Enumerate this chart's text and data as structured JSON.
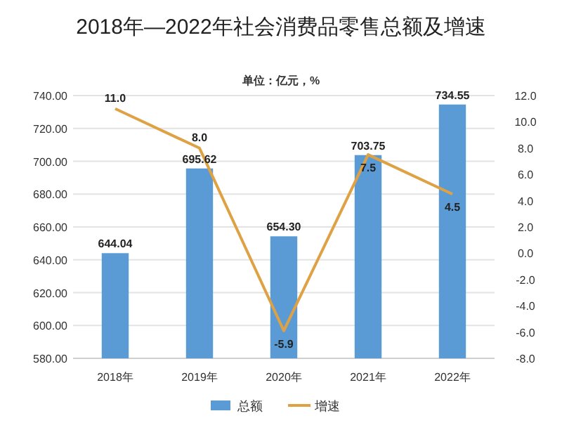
{
  "chart_data": {
    "type": "bar",
    "title": "2018年—2022年社会消费品零售总额及增速",
    "subtitle": "单位：亿元，%",
    "categories": [
      "2018年",
      "2019年",
      "2020年",
      "2021年",
      "2022年"
    ],
    "series": [
      {
        "name": "总额",
        "color": "#5b9bd5",
        "values": [
          644.04,
          695.62,
          654.3,
          703.75,
          734.55
        ],
        "value_labels": [
          "644.04",
          "695.62",
          "654.30",
          "703.75",
          "734.55"
        ]
      },
      {
        "name": "增速",
        "type": "line",
        "axis": "y2",
        "color": "#dea244",
        "values": [
          11.0,
          8.0,
          -5.9,
          7.5,
          4.5
        ],
        "value_labels": [
          "11.0",
          "8.0",
          "-5.9",
          "7.5",
          "4.5"
        ]
      }
    ],
    "ylim": [
      580,
      740
    ],
    "yticks": [
      {
        "value": 580,
        "label": "580.00"
      },
      {
        "value": 600,
        "label": "600.00"
      },
      {
        "value": 620,
        "label": "620.00"
      },
      {
        "value": 640,
        "label": "640.00"
      },
      {
        "value": 660,
        "label": "660.00"
      },
      {
        "value": 680,
        "label": "680.00"
      },
      {
        "value": 700,
        "label": "700.00"
      },
      {
        "value": 720,
        "label": "720.00"
      },
      {
        "value": 740,
        "label": "740.00"
      }
    ],
    "y2lim": [
      -8,
      12
    ],
    "y2ticks": [
      {
        "value": -8,
        "label": "-8.0"
      },
      {
        "value": -6,
        "label": "-6.0"
      },
      {
        "value": -4,
        "label": "-4.0"
      },
      {
        "value": -2,
        "label": "-2.0"
      },
      {
        "value": 0,
        "label": "0.0"
      },
      {
        "value": 2,
        "label": "2.0"
      },
      {
        "value": 4,
        "label": "4.0"
      },
      {
        "value": 6,
        "label": "6.0"
      },
      {
        "value": 8,
        "label": "8.0"
      },
      {
        "value": 10,
        "label": "10.0"
      },
      {
        "value": 12,
        "label": "12.0"
      }
    ],
    "grid": "y",
    "legend": "bottom"
  }
}
